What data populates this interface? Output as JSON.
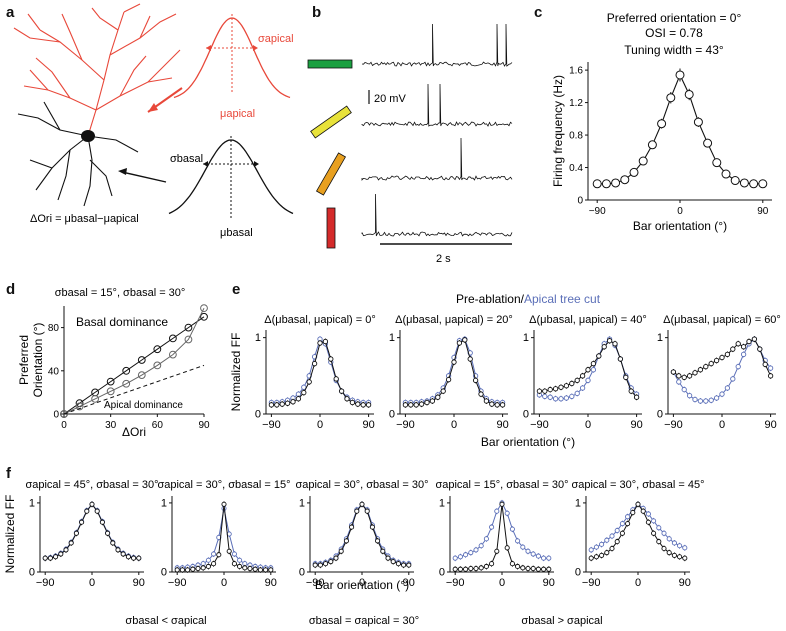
{
  "panel_letters": {
    "a": "a",
    "b": "b",
    "c": "c",
    "d": "d",
    "e": "e",
    "f": "f"
  },
  "colors": {
    "black": "#111111",
    "blue": "#5b6fb8",
    "apical_red": "#e8483a",
    "green": "#1aa040",
    "yellow": "#e8e23a",
    "orange": "#e8a020",
    "red": "#d42a2a"
  },
  "panel_a": {
    "sigma_apical": "σapical",
    "mu_apical": "μapical",
    "sigma_basal": "σbasal",
    "mu_basal": "μbasal",
    "delta_ori": "ΔOri = μbasal−μapical"
  },
  "panel_b": {
    "scale_voltage": "20 mV",
    "scale_time": "2 s"
  },
  "panel_c": {
    "title1": "Preferred orientation = 0°",
    "title2": "OSI = 0.78",
    "title3": "Tuning width = 43°"
  },
  "panel_d": {
    "title": "σbasal = 15°, σbasal = 30°",
    "label_basal": "Basal dominance",
    "label_apical": "Apical dominance"
  },
  "panel_e": {
    "legend_a": "Pre-ablation/",
    "legend_b": "Apical tree cut",
    "titles": [
      "Δ(μbasal, μapical) = 0°",
      "Δ(μbasal, μapical) = 20°",
      "Δ(μbasal, μapical) = 40°",
      "Δ(μbasal, μapical) = 60°"
    ]
  },
  "panel_f": {
    "titles": [
      "σapical = 45°, σbasal = 30°",
      "σapical = 30°, σbasal = 15°",
      "σapical = 30°, σbasal = 30°",
      "σapical = 15°, σbasal = 30°",
      "σapical = 30°, σbasal = 45°"
    ],
    "bottom_left": "σbasal < σapical",
    "bottom_mid": "σbasal = σapical = 30°",
    "bottom_right": "σbasal > σapical"
  },
  "chart_data": [
    {
      "id": "c",
      "type": "line",
      "title": "Preferred orientation = 0°, OSI = 0.78, Tuning width = 43°",
      "xlabel": "Bar orientation (°)",
      "ylabel": "Firing frequency (Hz)",
      "xlim": [
        -100,
        100
      ],
      "ylim": [
        0,
        1.7
      ],
      "xticks": [
        -90,
        0,
        90
      ],
      "yticks": [
        0,
        0.4,
        0.8,
        1.2,
        1.6
      ],
      "x": [
        -90,
        -80,
        -70,
        -60,
        -50,
        -40,
        -30,
        -20,
        -10,
        0,
        10,
        20,
        30,
        40,
        50,
        60,
        70,
        80,
        90
      ],
      "values": [
        0.2,
        0.2,
        0.21,
        0.25,
        0.34,
        0.48,
        0.68,
        0.94,
        1.26,
        1.54,
        1.3,
        0.96,
        0.7,
        0.46,
        0.32,
        0.24,
        0.21,
        0.2,
        0.2
      ],
      "errors": [
        0.03,
        0.03,
        0.03,
        0.03,
        0.04,
        0.04,
        0.05,
        0.06,
        0.07,
        0.08,
        0.07,
        0.06,
        0.05,
        0.04,
        0.04,
        0.03,
        0.03,
        0.03,
        0.03
      ]
    },
    {
      "id": "d",
      "type": "line",
      "title": "σbasal = 15°, σbasal = 30°",
      "xlabel": "ΔOri",
      "ylabel": "Preferred Orientation (°)",
      "xlim": [
        0,
        90
      ],
      "ylim": [
        0,
        100
      ],
      "xticks": [
        0,
        30,
        60,
        90
      ],
      "yticks": [
        0,
        40,
        80
      ],
      "series": [
        {
          "name": "basal 15",
          "x": [
            0,
            10,
            20,
            30,
            40,
            50,
            60,
            70,
            80,
            90
          ],
          "values": [
            0,
            10,
            20,
            30,
            40,
            50,
            60,
            70,
            80,
            90
          ]
        },
        {
          "name": "basal 30",
          "x": [
            0,
            10,
            20,
            30,
            40,
            50,
            60,
            70,
            80,
            90
          ],
          "values": [
            0,
            7,
            14,
            21,
            28,
            36,
            45,
            55,
            69,
            98
          ]
        },
        {
          "name": "apical dominance",
          "style": "dashed",
          "x": [
            0,
            90
          ],
          "values": [
            0,
            45
          ]
        }
      ]
    },
    {
      "id": "e",
      "type": "line",
      "xlabel": "Bar orientation (°)",
      "ylabel": "Normalized FF",
      "xlim": [
        -100,
        100
      ],
      "ylim": [
        0,
        1.1
      ],
      "xticks": [
        -90,
        0,
        90
      ],
      "yticks": [
        0,
        1
      ],
      "x": [
        -90,
        -80,
        -70,
        -60,
        -50,
        -40,
        -30,
        -20,
        -10,
        0,
        10,
        20,
        30,
        40,
        50,
        60,
        70,
        80,
        90
      ],
      "panels": [
        {
          "black": [
            0.12,
            0.12,
            0.13,
            0.14,
            0.16,
            0.2,
            0.28,
            0.42,
            0.66,
            0.93,
            0.95,
            0.72,
            0.46,
            0.3,
            0.2,
            0.15,
            0.13,
            0.12,
            0.12
          ],
          "blue": [
            0.15,
            0.15,
            0.16,
            0.18,
            0.21,
            0.26,
            0.35,
            0.5,
            0.75,
            0.98,
            0.92,
            0.68,
            0.44,
            0.3,
            0.22,
            0.18,
            0.16,
            0.15,
            0.15
          ]
        },
        {
          "black": [
            0.12,
            0.12,
            0.12,
            0.13,
            0.15,
            0.17,
            0.22,
            0.3,
            0.45,
            0.68,
            0.93,
            0.97,
            0.72,
            0.44,
            0.26,
            0.17,
            0.13,
            0.12,
            0.12
          ],
          "blue": [
            0.15,
            0.15,
            0.15,
            0.16,
            0.17,
            0.2,
            0.25,
            0.34,
            0.5,
            0.74,
            0.96,
            0.98,
            0.8,
            0.5,
            0.3,
            0.2,
            0.16,
            0.15,
            0.15
          ]
        },
        {
          "black": [
            0.3,
            0.3,
            0.32,
            0.33,
            0.35,
            0.37,
            0.4,
            0.44,
            0.5,
            0.58,
            0.66,
            0.76,
            0.88,
            0.96,
            0.92,
            0.72,
            0.48,
            0.3,
            0.22
          ],
          "blue": [
            0.25,
            0.23,
            0.22,
            0.2,
            0.2,
            0.21,
            0.23,
            0.27,
            0.34,
            0.44,
            0.58,
            0.76,
            0.92,
            0.98,
            0.9,
            0.72,
            0.5,
            0.34,
            0.26
          ]
        },
        {
          "black": [
            0.55,
            0.5,
            0.48,
            0.5,
            0.54,
            0.58,
            0.62,
            0.66,
            0.7,
            0.74,
            0.78,
            0.85,
            0.92,
            0.88,
            0.95,
            0.98,
            0.85,
            0.65,
            0.5
          ],
          "blue": [
            0.55,
            0.42,
            0.32,
            0.24,
            0.19,
            0.17,
            0.17,
            0.18,
            0.21,
            0.26,
            0.34,
            0.46,
            0.62,
            0.78,
            0.92,
            0.98,
            0.85,
            0.7,
            0.6
          ]
        }
      ]
    },
    {
      "id": "f",
      "type": "line",
      "xlabel": "Bar orientation (°)",
      "ylabel": "Normalized FF",
      "xlim": [
        -100,
        100
      ],
      "ylim": [
        0,
        1.1
      ],
      "xticks": [
        -90,
        0,
        90
      ],
      "yticks": [
        0,
        1
      ],
      "x": [
        -90,
        -80,
        -70,
        -60,
        -50,
        -40,
        -30,
        -20,
        -10,
        0,
        10,
        20,
        30,
        40,
        50,
        60,
        70,
        80,
        90
      ],
      "panels": [
        {
          "black": [
            0.2,
            0.2,
            0.22,
            0.26,
            0.32,
            0.42,
            0.56,
            0.72,
            0.88,
            0.98,
            0.88,
            0.72,
            0.56,
            0.42,
            0.32,
            0.26,
            0.22,
            0.2,
            0.2
          ],
          "blue": [
            0.2,
            0.21,
            0.23,
            0.27,
            0.33,
            0.43,
            0.57,
            0.73,
            0.89,
            0.98,
            0.89,
            0.73,
            0.57,
            0.43,
            0.33,
            0.27,
            0.23,
            0.21,
            0.2
          ]
        },
        {
          "black": [
            0.03,
            0.03,
            0.03,
            0.04,
            0.05,
            0.06,
            0.08,
            0.12,
            0.25,
            0.98,
            0.3,
            0.12,
            0.08,
            0.06,
            0.05,
            0.04,
            0.03,
            0.03,
            0.03
          ],
          "blue": [
            0.06,
            0.06,
            0.07,
            0.08,
            0.1,
            0.12,
            0.17,
            0.26,
            0.5,
            0.92,
            0.55,
            0.26,
            0.17,
            0.12,
            0.1,
            0.08,
            0.07,
            0.06,
            0.06
          ]
        },
        {
          "black": [
            0.1,
            0.1,
            0.12,
            0.15,
            0.2,
            0.3,
            0.45,
            0.65,
            0.88,
            0.98,
            0.88,
            0.65,
            0.45,
            0.3,
            0.2,
            0.15,
            0.12,
            0.1,
            0.1
          ],
          "blue": [
            0.12,
            0.12,
            0.14,
            0.17,
            0.23,
            0.33,
            0.48,
            0.68,
            0.9,
            0.98,
            0.9,
            0.68,
            0.48,
            0.33,
            0.23,
            0.17,
            0.14,
            0.12,
            0.12
          ]
        },
        {
          "black": [
            0.04,
            0.04,
            0.04,
            0.05,
            0.05,
            0.06,
            0.08,
            0.12,
            0.3,
            0.98,
            0.35,
            0.12,
            0.08,
            0.06,
            0.05,
            0.05,
            0.04,
            0.04,
            0.04
          ],
          "blue": [
            0.2,
            0.22,
            0.25,
            0.28,
            0.32,
            0.38,
            0.48,
            0.65,
            0.88,
            1.0,
            0.85,
            0.62,
            0.45,
            0.36,
            0.3,
            0.26,
            0.23,
            0.2,
            0.2
          ]
        },
        {
          "black": [
            0.2,
            0.22,
            0.24,
            0.28,
            0.34,
            0.44,
            0.56,
            0.7,
            0.86,
            0.98,
            0.88,
            0.72,
            0.56,
            0.44,
            0.34,
            0.28,
            0.24,
            0.22,
            0.2
          ],
          "blue": [
            0.32,
            0.36,
            0.4,
            0.46,
            0.52,
            0.6,
            0.7,
            0.8,
            0.9,
            0.98,
            0.92,
            0.84,
            0.74,
            0.64,
            0.56,
            0.48,
            0.42,
            0.38,
            0.35
          ]
        }
      ]
    }
  ]
}
